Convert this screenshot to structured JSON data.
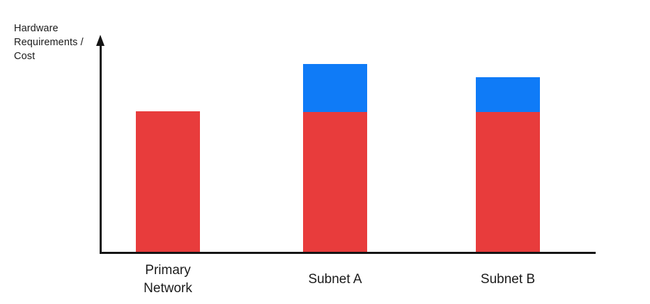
{
  "axes": {
    "y_label_lines": [
      "Hardware",
      "Requirements /",
      "Cost"
    ],
    "axis_color": "#141414",
    "text_color": "#1b1b1b"
  },
  "chart_data": {
    "type": "bar",
    "stacked": true,
    "title": "",
    "xlabel": "",
    "ylabel": "Hardware Requirements / Cost",
    "categories": [
      "Primary Network",
      "Subnet A",
      "Subnet B"
    ],
    "series": [
      {
        "name": "base-hardware-red",
        "color": "#e83c3c",
        "values": [
          202,
          201,
          201
        ]
      },
      {
        "name": "additional-hardware-blue",
        "color": "#0f7bf7",
        "values": [
          0,
          69,
          50
        ]
      }
    ],
    "unit": "relative-px",
    "y_axis_ticks": [],
    "grid": false,
    "legend": false
  }
}
